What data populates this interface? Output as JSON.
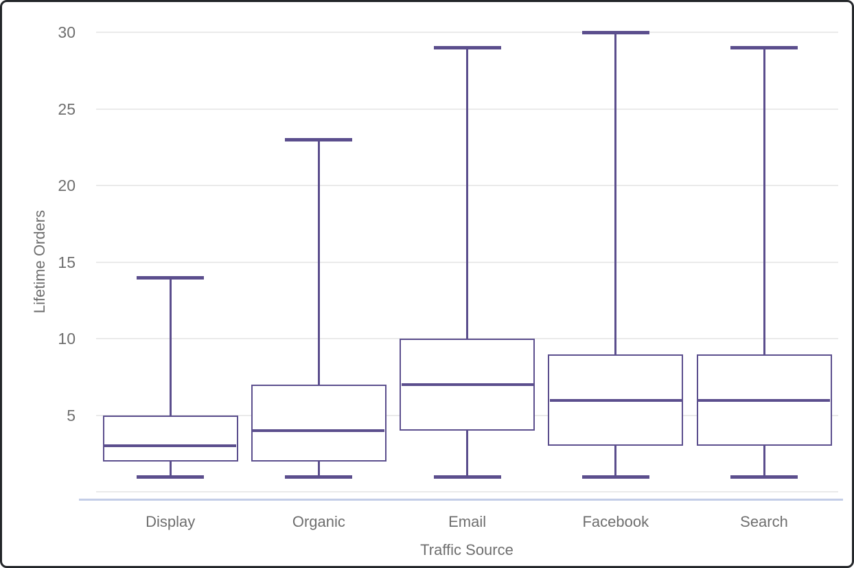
{
  "chart_data": {
    "type": "boxplot",
    "title": "",
    "xlabel": "Traffic Source",
    "ylabel": "Lifetime Orders",
    "categories": [
      "Display",
      "Organic",
      "Email",
      "Facebook",
      "Search"
    ],
    "series": [
      {
        "name": "Display",
        "min": 1,
        "q1": 2,
        "median": 3,
        "q3": 5,
        "max": 14
      },
      {
        "name": "Organic",
        "min": 1,
        "q1": 2,
        "median": 4,
        "q3": 7,
        "max": 23
      },
      {
        "name": "Email",
        "min": 1,
        "q1": 4,
        "median": 7,
        "q3": 10,
        "max": 29
      },
      {
        "name": "Facebook",
        "min": 1,
        "q1": 3,
        "median": 6,
        "q3": 9,
        "max": 30
      },
      {
        "name": "Search",
        "min": 1,
        "q1": 3,
        "median": 6,
        "q3": 9,
        "max": 29
      }
    ],
    "ylim": [
      0,
      30
    ],
    "yticks": [
      5,
      10,
      15,
      20,
      25,
      30
    ],
    "grid": true,
    "legend": "none",
    "colors": {
      "box": "#5b4e8d",
      "grid": "#eaeaea",
      "axis_line": "#c3cde7",
      "text": "#6e6e6e",
      "frame_border": "#232629",
      "background": "#ffffff"
    }
  }
}
